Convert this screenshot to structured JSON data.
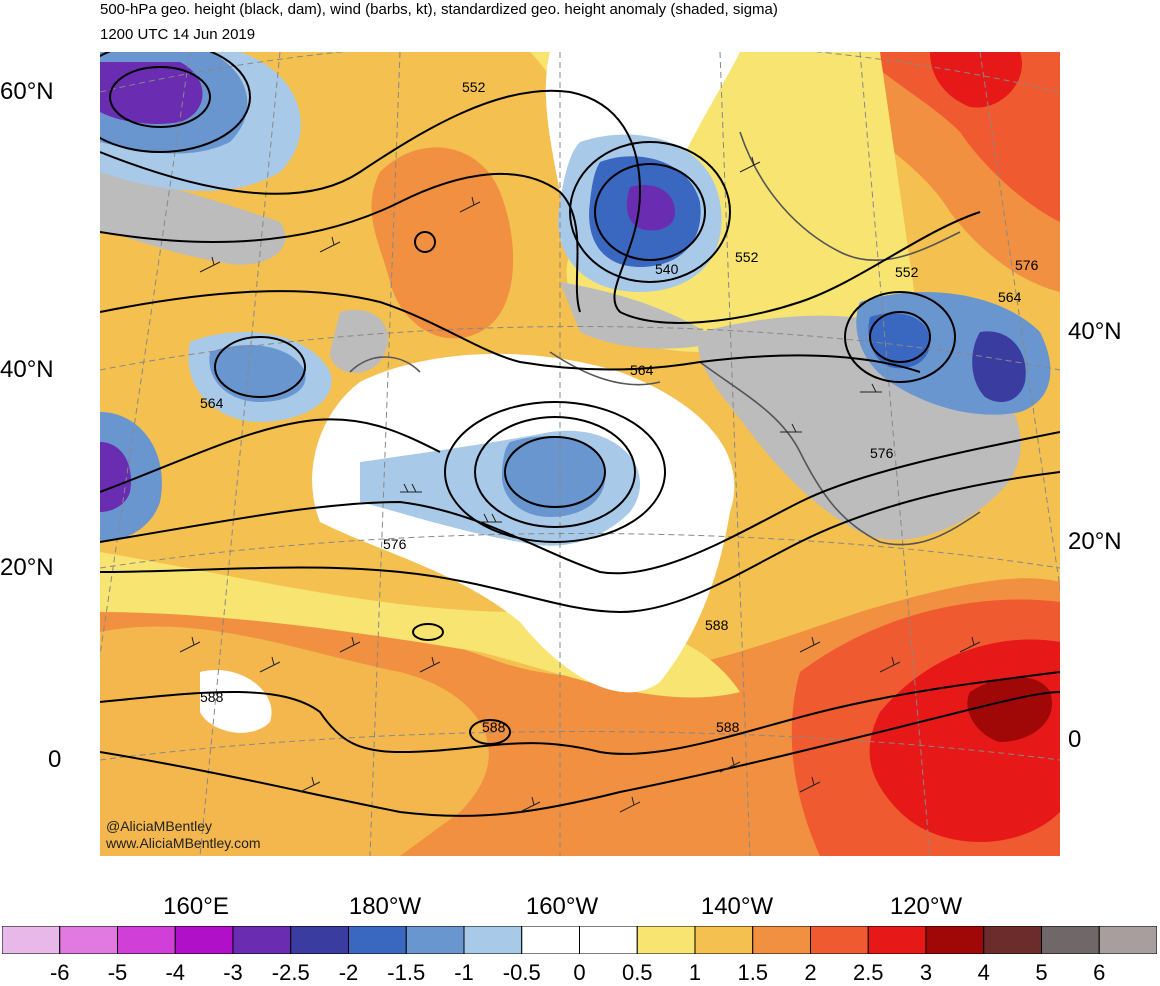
{
  "title": {
    "line1": "500-hPa geo. height (black, dam), wind (barbs, kt), standardized geo. height anomaly (shaded, sigma)",
    "line2": "1200 UTC 14 Jun 2019"
  },
  "lat_labels_left": [
    "60°N",
    "40°N",
    "20°N",
    "0"
  ],
  "lat_labels_right": [
    "40°N",
    "20°N",
    "0"
  ],
  "lon_labels": [
    "160°E",
    "180°W",
    "160°W",
    "140°W",
    "120°W"
  ],
  "contour_labels": [
    "552",
    "540",
    "552",
    "552",
    "564",
    "576",
    "564",
    "564",
    "576",
    "588",
    "588",
    "588",
    "588"
  ],
  "credit": [
    "@AliciaMBentley",
    "www.AliciaMBentley.com"
  ],
  "colorbar": {
    "ticks": [
      "-6",
      "-5",
      "-4",
      "-3",
      "-2.5",
      "-2",
      "-1.5",
      "-1",
      "-0.5",
      "0",
      "0.5",
      "1",
      "1.5",
      "2",
      "2.5",
      "3",
      "4",
      "5",
      "6"
    ],
    "colors": [
      "#e8b8e8",
      "#e07ae0",
      "#d040d8",
      "#b010c8",
      "#6a2cb0",
      "#3a3ca0",
      "#3a68c0",
      "#6a96d0",
      "#a8cae8",
      "#ffffff",
      "#ffffff",
      "#f8e470",
      "#f4c050",
      "#f09040",
      "#f05a30",
      "#e61818",
      "#a00808",
      "#6c2c2c",
      "#706868",
      "#a89e9e"
    ]
  }
}
